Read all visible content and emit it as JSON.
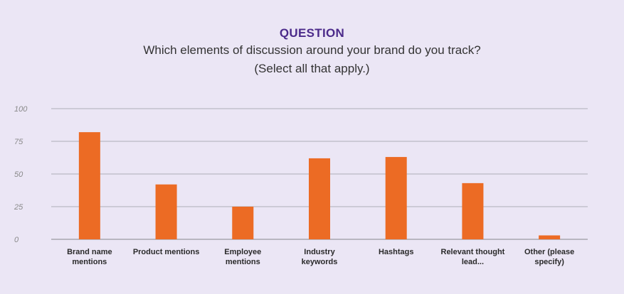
{
  "header": {
    "heading": "QUESTION",
    "question_line1": "Which elements of discussion around your brand do you track?",
    "question_line2": "(Select all that apply.)"
  },
  "chart_data": {
    "type": "bar",
    "categories": [
      [
        "Brand name",
        "mentions"
      ],
      [
        "Product mentions"
      ],
      [
        "Employee",
        "mentions"
      ],
      [
        "Industry",
        "keywords"
      ],
      [
        "Hashtags"
      ],
      [
        "Relevant thought",
        "lead..."
      ],
      [
        "Other (please",
        "specify)"
      ]
    ],
    "values": [
      82,
      42,
      25,
      62,
      63,
      43,
      3
    ],
    "ylim": [
      0,
      100
    ],
    "yticks": [
      "0",
      "25",
      "50",
      "75",
      "100"
    ],
    "ytick_values": [
      0,
      25,
      50,
      75,
      100
    ],
    "grid": true,
    "colors": {
      "bar": "#ec6b24",
      "grid": "#9a9aa0",
      "background": "#ebe6f5"
    }
  }
}
